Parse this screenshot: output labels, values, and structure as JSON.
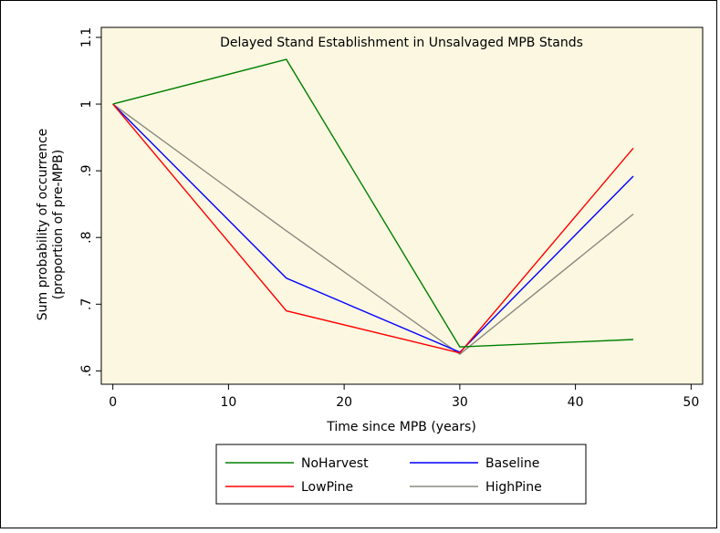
{
  "chart_data": {
    "type": "line",
    "title": "Delayed Stand Establishment in Unsalvaged MPB Stands",
    "xlabel": "Time since MPB (years)",
    "ylabel_lines": [
      "Sum probability of occurrence",
      "(proportion of pre-MPB)"
    ],
    "xlim": [
      -1,
      51
    ],
    "ylim": [
      0.58,
      1.115
    ],
    "xticks": [
      0,
      10,
      20,
      30,
      40,
      50
    ],
    "xtick_labels": [
      "0",
      "10",
      "20",
      "30",
      "40",
      "50"
    ],
    "yticks": [
      0.6,
      0.7,
      0.8,
      0.9,
      1.0,
      1.1
    ],
    "ytick_labels": [
      ".6",
      ".7",
      ".8",
      ".9",
      "1",
      "1.1"
    ],
    "grid": false,
    "legend_position": "bottom",
    "series": [
      {
        "name": "NoHarvest",
        "color": "#008000",
        "x": [
          0,
          15,
          30,
          45
        ],
        "y": [
          1.0,
          1.067,
          0.636,
          0.647
        ]
      },
      {
        "name": "Baseline",
        "color": "#0000ff",
        "x": [
          0,
          15,
          30,
          45
        ],
        "y": [
          1.0,
          0.739,
          0.628,
          0.892
        ]
      },
      {
        "name": "LowPine",
        "color": "#ff0000",
        "x": [
          0,
          15,
          30,
          45
        ],
        "y": [
          1.0,
          0.69,
          0.627,
          0.934
        ]
      },
      {
        "name": "HighPine",
        "color": "#8a8a80",
        "x": [
          0,
          15,
          30,
          45
        ],
        "y": [
          1.0,
          0.81,
          0.625,
          0.835
        ]
      }
    ],
    "legend_order": [
      "NoHarvest",
      "Baseline",
      "LowPine",
      "HighPine"
    ]
  },
  "colors": {
    "page_background": "#ffffff",
    "plot_background": "#fbf7e1",
    "border": "#000000"
  }
}
